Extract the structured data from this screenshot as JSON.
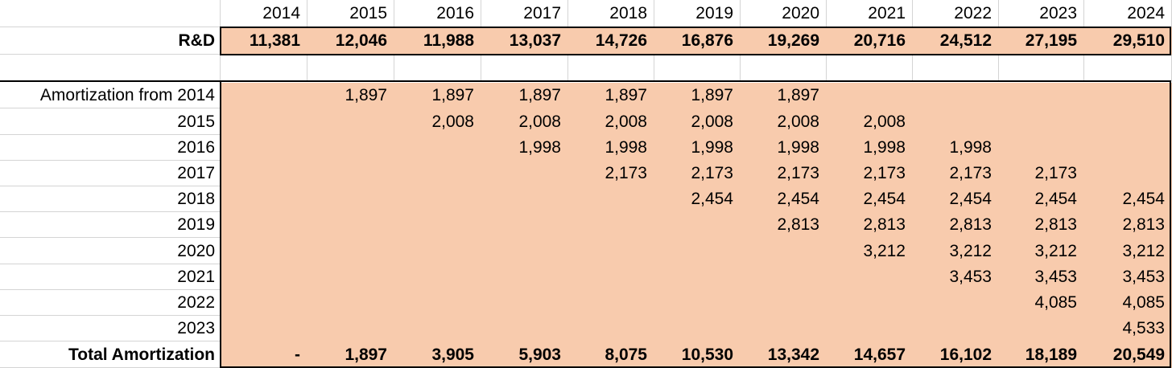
{
  "years": [
    "2014",
    "2015",
    "2016",
    "2017",
    "2018",
    "2019",
    "2020",
    "2021",
    "2022",
    "2023",
    "2024"
  ],
  "rd": {
    "label": "R&D",
    "values": [
      "11,381",
      "12,046",
      "11,988",
      "13,037",
      "14,726",
      "16,876",
      "19,269",
      "20,716",
      "24,512",
      "27,195",
      "29,510"
    ]
  },
  "amortization": {
    "rows": [
      {
        "label": "Amortization from 2014",
        "values": [
          "",
          "1,897",
          "1,897",
          "1,897",
          "1,897",
          "1,897",
          "1,897",
          "",
          "",
          "",
          ""
        ]
      },
      {
        "label": "2015",
        "values": [
          "",
          "",
          "2,008",
          "2,008",
          "2,008",
          "2,008",
          "2,008",
          "2,008",
          "",
          "",
          ""
        ]
      },
      {
        "label": "2016",
        "values": [
          "",
          "",
          "",
          "1,998",
          "1,998",
          "1,998",
          "1,998",
          "1,998",
          "1,998",
          "",
          ""
        ]
      },
      {
        "label": "2017",
        "values": [
          "",
          "",
          "",
          "",
          "2,173",
          "2,173",
          "2,173",
          "2,173",
          "2,173",
          "2,173",
          ""
        ]
      },
      {
        "label": "2018",
        "values": [
          "",
          "",
          "",
          "",
          "",
          "2,454",
          "2,454",
          "2,454",
          "2,454",
          "2,454",
          "2,454"
        ]
      },
      {
        "label": "2019",
        "values": [
          "",
          "",
          "",
          "",
          "",
          "",
          "2,813",
          "2,813",
          "2,813",
          "2,813",
          "2,813"
        ]
      },
      {
        "label": "2020",
        "values": [
          "",
          "",
          "",
          "",
          "",
          "",
          "",
          "3,212",
          "3,212",
          "3,212",
          "3,212"
        ]
      },
      {
        "label": "2021",
        "values": [
          "",
          "",
          "",
          "",
          "",
          "",
          "",
          "",
          "3,453",
          "3,453",
          "3,453"
        ]
      },
      {
        "label": "2022",
        "values": [
          "",
          "",
          "",
          "",
          "",
          "",
          "",
          "",
          "",
          "4,085",
          "4,085"
        ]
      },
      {
        "label": "2023",
        "values": [
          "",
          "",
          "",
          "",
          "",
          "",
          "",
          "",
          "",
          "",
          "4,533"
        ]
      }
    ],
    "total": {
      "label": "Total Amortization",
      "values": [
        "-",
        "1,897",
        "3,905",
        "5,903",
        "8,075",
        "10,530",
        "13,342",
        "14,657",
        "16,102",
        "18,189",
        "20,549"
      ]
    }
  }
}
